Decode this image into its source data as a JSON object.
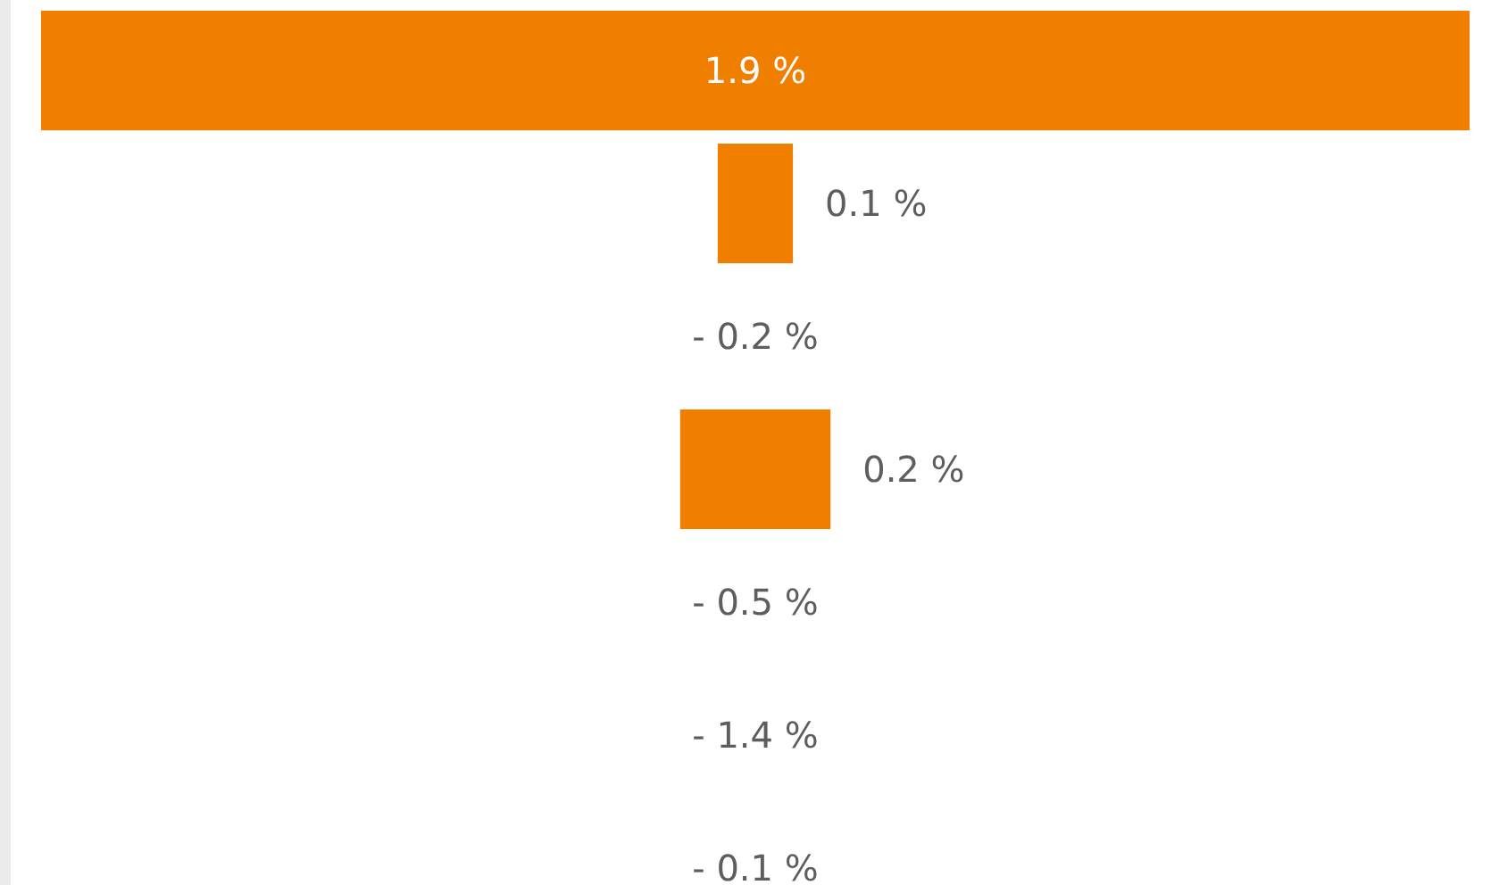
{
  "chart_data": {
    "type": "other",
    "categories": [
      null,
      null,
      null,
      null,
      null,
      null,
      null
    ],
    "values": [
      1.9,
      0.1,
      -0.2,
      0.2,
      -0.5,
      -1.4,
      -0.1
    ],
    "value_labels": [
      "1.9 %",
      "0.1 %",
      "- 0.2 %",
      "0.2 %",
      "- 0.5 %",
      "- 1.4 %",
      "- 0.1 %"
    ],
    "color": "#f07f00"
  }
}
